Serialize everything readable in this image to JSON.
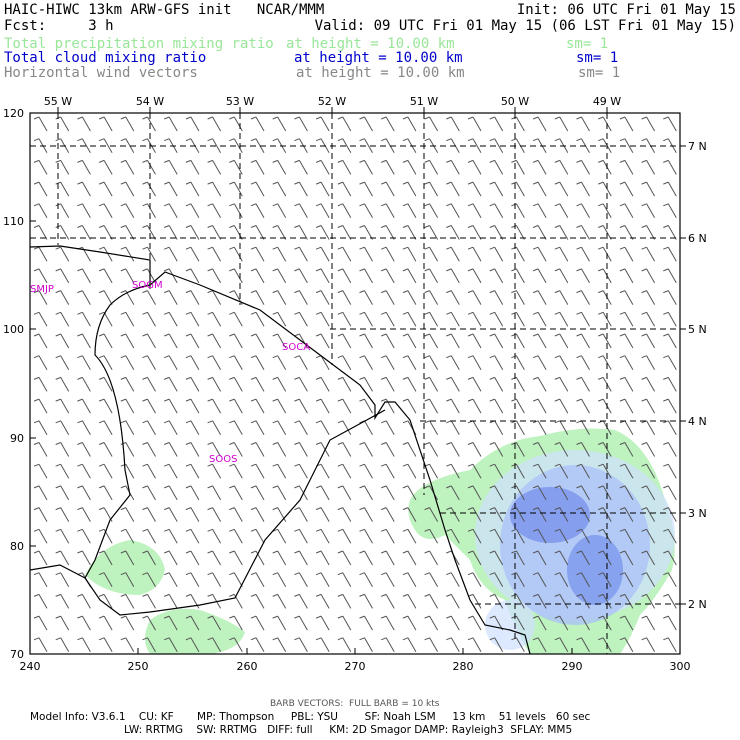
{
  "header": {
    "line1_left": "HAIC-HIWC 13km ARW-GFS init   NCAR/MMM",
    "line1_right": "Init: 06 UTC Fri 01 May 15",
    "line2_left": "Fcst:     3 h",
    "line2_right": "Valid: 09 UTC Fri 01 May 15 (06 LST Fri 01 May 15)",
    "fields": [
      {
        "name": "Total precipitation mixing ratio",
        "height": "at height = 10.00 km",
        "sm": "sm= 1",
        "color": "#99e699"
      },
      {
        "name": "Total cloud mixing ratio",
        "height": "at height = 10.00 km",
        "sm": "sm= 1",
        "color": "#0000cc"
      },
      {
        "name": "Horizontal wind vectors",
        "height": "at height = 10.00 km",
        "sm": "sm= 1",
        "color": "#888888"
      }
    ]
  },
  "map": {
    "x_ticks": [
      "240",
      "250",
      "260",
      "270",
      "280",
      "290",
      "300"
    ],
    "y_ticks": [
      "70",
      "80",
      "90",
      "100",
      "110",
      "120"
    ],
    "lon_labels": [
      "55 W",
      "54 W",
      "53 W",
      "52 W",
      "51 W",
      "50 W",
      "49 W"
    ],
    "lat_labels": [
      "7 N",
      "6 N",
      "5 N",
      "4 N",
      "3 N",
      "2 N"
    ],
    "stations": [
      "SMJP",
      "SOGM",
      "SOCA",
      "SOOS"
    ],
    "station_color": "#d000d0",
    "precip_color": "#b3f0b3",
    "cloud_color": "#7fa0ff"
  },
  "footer": {
    "barb_note": "BARB VECTORS:  FULL BARB = 10 kts",
    "model_line1": "Model Info: V3.6.1    CU: KF       MP: Thompson     PBL: YSU        SF: Noah LSM     13 km    51 levels   60 sec",
    "model_line2": "LW: RRTMG    SW: RRTMG   DIFF: full     KM: 2D Smagor DAMP: Rayleigh3  SFLAY: MM5"
  }
}
